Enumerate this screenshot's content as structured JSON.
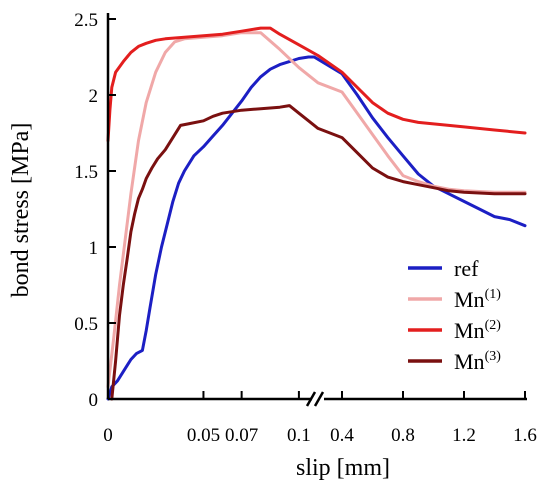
{
  "chart_data": {
    "type": "line",
    "xlabel": "slip [mm]",
    "ylabel": "bond stress [MPa]",
    "ylim": [
      0,
      2.5
    ],
    "x_axis": {
      "broken": true,
      "segment_1": {
        "range": [
          0,
          0.11
        ],
        "ticks": [
          0,
          0.05,
          0.07,
          0.1
        ],
        "tick_labels": [
          "0",
          "0.05",
          "0.07",
          "0.1"
        ]
      },
      "segment_2": {
        "range": [
          0.4,
          1.6
        ],
        "ticks": [
          0.4,
          0.8,
          1.2,
          1.6
        ],
        "tick_labels": [
          "0.4",
          "0.8",
          "1.2",
          "1.6"
        ]
      }
    },
    "y_ticks": [
      0,
      0.5,
      1,
      1.5,
      2,
      2.5
    ],
    "y_tick_labels": [
      "0",
      "0.5",
      "1",
      "1.5",
      "2",
      "2.5"
    ],
    "grid": false,
    "legend_position": "bottom-right",
    "series": [
      {
        "name": "ref",
        "base": "ref",
        "sup": "",
        "color": "#1c1fc4",
        "points": [
          [
            0,
            0
          ],
          [
            0.002,
            0.08
          ],
          [
            0.005,
            0.12
          ],
          [
            0.008,
            0.18
          ],
          [
            0.012,
            0.26
          ],
          [
            0.015,
            0.3
          ],
          [
            0.018,
            0.32
          ],
          [
            0.02,
            0.45
          ],
          [
            0.022,
            0.6
          ],
          [
            0.025,
            0.82
          ],
          [
            0.028,
            1.0
          ],
          [
            0.031,
            1.15
          ],
          [
            0.034,
            1.3
          ],
          [
            0.037,
            1.42
          ],
          [
            0.04,
            1.5
          ],
          [
            0.045,
            1.6
          ],
          [
            0.05,
            1.66
          ],
          [
            0.055,
            1.73
          ],
          [
            0.06,
            1.8
          ],
          [
            0.065,
            1.88
          ],
          [
            0.07,
            1.96
          ],
          [
            0.075,
            2.05
          ],
          [
            0.08,
            2.12
          ],
          [
            0.085,
            2.17
          ],
          [
            0.09,
            2.2
          ],
          [
            0.095,
            2.22
          ],
          [
            0.1,
            2.24
          ],
          [
            0.105,
            2.25
          ],
          [
            0.108,
            2.25
          ],
          [
            0.4,
            2.14
          ],
          [
            0.5,
            2.0
          ],
          [
            0.6,
            1.85
          ],
          [
            0.7,
            1.72
          ],
          [
            0.8,
            1.6
          ],
          [
            0.9,
            1.48
          ],
          [
            1.0,
            1.4
          ],
          [
            1.1,
            1.35
          ],
          [
            1.2,
            1.3
          ],
          [
            1.3,
            1.25
          ],
          [
            1.4,
            1.2
          ],
          [
            1.5,
            1.18
          ],
          [
            1.6,
            1.14
          ]
        ]
      },
      {
        "name": "Mn(1)",
        "base": "Mn",
        "sup": "(1)",
        "color": "#f0a8a8",
        "points": [
          [
            0,
            0.08
          ],
          [
            0.003,
            0.4
          ],
          [
            0.006,
            0.75
          ],
          [
            0.009,
            1.05
          ],
          [
            0.012,
            1.35
          ],
          [
            0.016,
            1.7
          ],
          [
            0.02,
            1.95
          ],
          [
            0.025,
            2.15
          ],
          [
            0.03,
            2.28
          ],
          [
            0.035,
            2.35
          ],
          [
            0.04,
            2.37
          ],
          [
            0.05,
            2.38
          ],
          [
            0.06,
            2.39
          ],
          [
            0.07,
            2.41
          ],
          [
            0.08,
            2.41
          ],
          [
            0.09,
            2.3
          ],
          [
            0.1,
            2.18
          ],
          [
            0.11,
            2.08
          ],
          [
            0.4,
            2.02
          ],
          [
            0.5,
            1.88
          ],
          [
            0.6,
            1.74
          ],
          [
            0.7,
            1.6
          ],
          [
            0.8,
            1.47
          ],
          [
            0.9,
            1.43
          ],
          [
            1.0,
            1.4
          ],
          [
            1.1,
            1.38
          ],
          [
            1.2,
            1.37
          ],
          [
            1.4,
            1.36
          ],
          [
            1.6,
            1.36
          ]
        ]
      },
      {
        "name": "Mn(2)",
        "base": "Mn",
        "sup": "(2)",
        "color": "#e31e1e",
        "points": [
          [
            0,
            1.7
          ],
          [
            0.001,
            1.9
          ],
          [
            0.002,
            2.05
          ],
          [
            0.004,
            2.15
          ],
          [
            0.008,
            2.22
          ],
          [
            0.012,
            2.28
          ],
          [
            0.016,
            2.32
          ],
          [
            0.02,
            2.34
          ],
          [
            0.025,
            2.36
          ],
          [
            0.03,
            2.37
          ],
          [
            0.04,
            2.38
          ],
          [
            0.05,
            2.39
          ],
          [
            0.06,
            2.4
          ],
          [
            0.07,
            2.42
          ],
          [
            0.08,
            2.44
          ],
          [
            0.085,
            2.44
          ],
          [
            0.09,
            2.4
          ],
          [
            0.1,
            2.33
          ],
          [
            0.11,
            2.26
          ],
          [
            0.4,
            2.15
          ],
          [
            0.5,
            2.05
          ],
          [
            0.6,
            1.95
          ],
          [
            0.7,
            1.88
          ],
          [
            0.8,
            1.84
          ],
          [
            0.9,
            1.82
          ],
          [
            1.0,
            1.81
          ],
          [
            1.1,
            1.8
          ],
          [
            1.2,
            1.79
          ],
          [
            1.4,
            1.77
          ],
          [
            1.6,
            1.75
          ]
        ]
      },
      {
        "name": "Mn(3)",
        "base": "Mn",
        "sup": "(3)",
        "color": "#7a1010",
        "points": [
          [
            0.002,
            0
          ],
          [
            0.004,
            0.25
          ],
          [
            0.006,
            0.55
          ],
          [
            0.008,
            0.75
          ],
          [
            0.01,
            0.92
          ],
          [
            0.012,
            1.1
          ],
          [
            0.014,
            1.22
          ],
          [
            0.016,
            1.32
          ],
          [
            0.018,
            1.38
          ],
          [
            0.02,
            1.45
          ],
          [
            0.023,
            1.52
          ],
          [
            0.026,
            1.58
          ],
          [
            0.03,
            1.64
          ],
          [
            0.034,
            1.72
          ],
          [
            0.038,
            1.8
          ],
          [
            0.042,
            1.81
          ],
          [
            0.05,
            1.83
          ],
          [
            0.055,
            1.86
          ],
          [
            0.06,
            1.88
          ],
          [
            0.07,
            1.9
          ],
          [
            0.08,
            1.91
          ],
          [
            0.09,
            1.92
          ],
          [
            0.095,
            1.93
          ],
          [
            0.1,
            1.88
          ],
          [
            0.105,
            1.83
          ],
          [
            0.11,
            1.78
          ],
          [
            0.4,
            1.72
          ],
          [
            0.5,
            1.62
          ],
          [
            0.6,
            1.52
          ],
          [
            0.7,
            1.46
          ],
          [
            0.8,
            1.43
          ],
          [
            0.9,
            1.41
          ],
          [
            1.0,
            1.39
          ],
          [
            1.1,
            1.37
          ],
          [
            1.2,
            1.36
          ],
          [
            1.4,
            1.35
          ],
          [
            1.6,
            1.35
          ]
        ]
      }
    ]
  }
}
